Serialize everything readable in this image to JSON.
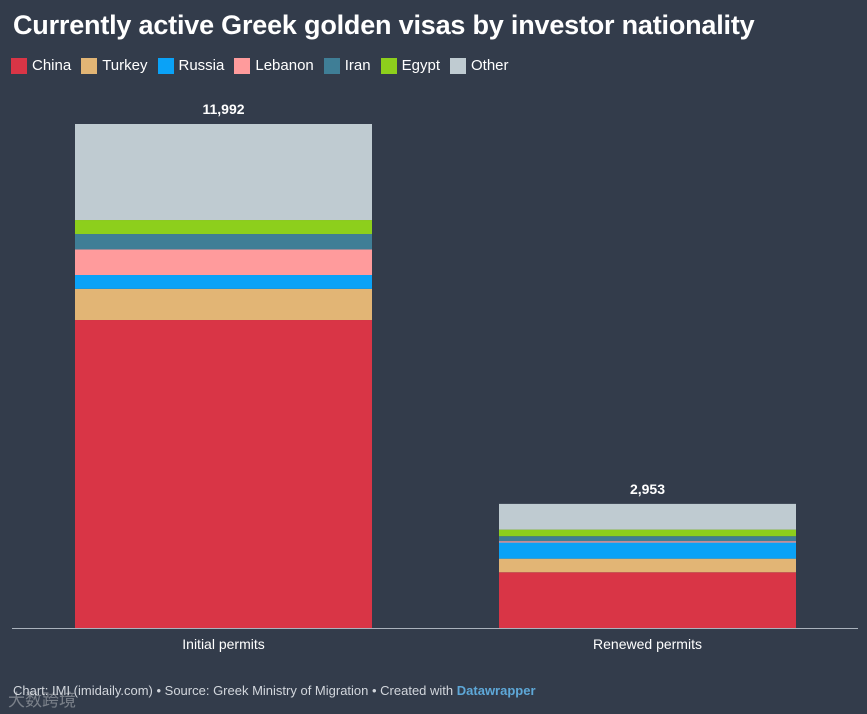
{
  "colors": {
    "background": "#333c4b",
    "China": "#d93546",
    "Turkey": "#e2b575",
    "Russia": "#0aa2f7",
    "Lebanon": "#ff9b9c",
    "Iran": "#3f7e96",
    "Egypt": "#8dcf1c",
    "Other": "#bfcbd1"
  },
  "chart_data": {
    "type": "bar",
    "stacked": true,
    "title": "Currently active Greek golden visas by investor nationality",
    "categories": [
      "Initial permits",
      "Renewed permits"
    ],
    "totals": [
      11992,
      2953
    ],
    "total_labels": [
      "11,992",
      "2,953"
    ],
    "series": [
      {
        "name": "China",
        "values": [
          7328,
          1326
        ]
      },
      {
        "name": "Turkey",
        "values": [
          742,
          324
        ]
      },
      {
        "name": "Russia",
        "values": [
          329,
          383
        ]
      },
      {
        "name": "Lebanon",
        "values": [
          608,
          33
        ]
      },
      {
        "name": "Iran",
        "values": [
          367,
          118
        ]
      },
      {
        "name": "Egypt",
        "values": [
          333,
          157
        ]
      },
      {
        "name": "Other",
        "values": [
          2285,
          612
        ]
      }
    ],
    "ylim": [
      0,
      11992
    ],
    "xlabel": "",
    "ylabel": "",
    "legend_position": "top-left"
  },
  "footer": {
    "text": "Chart: IMI (imidaily.com) • Source: Greek Ministry of Migration • Created with ",
    "link": "Datawrapper"
  },
  "watermark": "大数跨境"
}
